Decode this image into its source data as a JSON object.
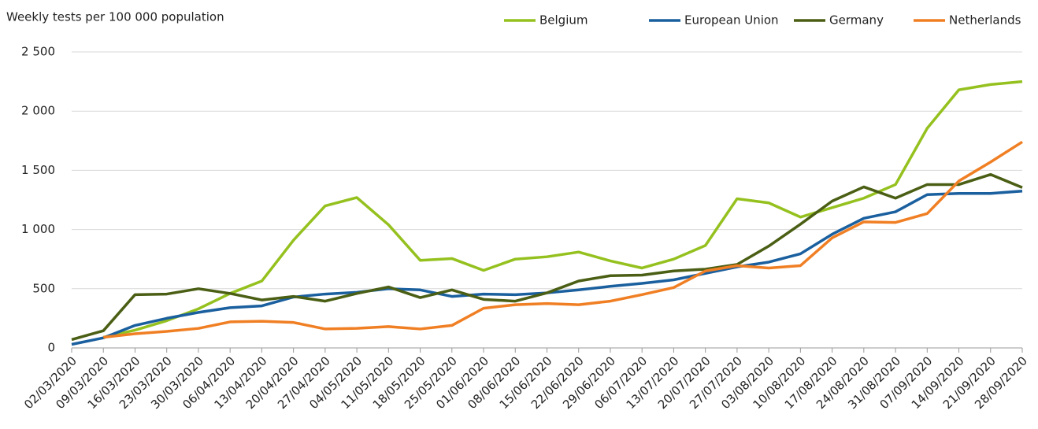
{
  "chart_data": {
    "type": "line",
    "y_axis_label": "Weekly tests per 100 000 population",
    "categories": [
      "02/03/2020",
      "09/03/2020",
      "16/03/2020",
      "23/03/2020",
      "30/03/2020",
      "06/04/2020",
      "13/04/2020",
      "20/04/2020",
      "27/04/2020",
      "04/05/2020",
      "11/05/2020",
      "18/05/2020",
      "25/05/2020",
      "01/06/2020",
      "08/06/2020",
      "15/06/2020",
      "22/06/2020",
      "29/06/2020",
      "06/07/2020",
      "13/07/2020",
      "20/07/2020",
      "27/07/2020",
      "03/08/2020",
      "10/08/2020",
      "17/08/2020",
      "24/08/2020",
      "31/08/2020",
      "07/09/2020",
      "14/09/2020",
      "21/09/2020",
      "28/09/2020"
    ],
    "series": [
      {
        "name": "Belgium",
        "color": "#95c11f",
        "values": [
          null,
          90,
          150,
          230,
          330,
          460,
          565,
          910,
          1200,
          1270,
          1040,
          740,
          755,
          655,
          750,
          770,
          810,
          735,
          675,
          750,
          865,
          1260,
          1225,
          1105,
          1185,
          1265,
          1380,
          1855,
          2180,
          2225,
          2250
        ]
      },
      {
        "name": "European Union",
        "color": "#1a5f9e",
        "values": [
          30,
          85,
          190,
          250,
          300,
          340,
          355,
          430,
          455,
          470,
          500,
          490,
          435,
          455,
          450,
          465,
          490,
          520,
          545,
          575,
          630,
          685,
          725,
          795,
          960,
          1095,
          1150,
          1295,
          1305,
          1305,
          1325
        ]
      },
      {
        "name": "Germany",
        "color": "#4a5e14",
        "values": [
          70,
          145,
          450,
          455,
          500,
          460,
          405,
          435,
          395,
          460,
          515,
          425,
          490,
          410,
          395,
          465,
          565,
          610,
          615,
          650,
          665,
          705,
          860,
          1045,
          1240,
          1360,
          1265,
          1380,
          1380,
          1465,
          1355
        ]
      },
      {
        "name": "Netherlands",
        "color": "#f07f24",
        "values": [
          null,
          90,
          120,
          140,
          165,
          220,
          225,
          215,
          160,
          165,
          180,
          160,
          190,
          335,
          365,
          375,
          365,
          395,
          450,
          510,
          650,
          695,
          675,
          695,
          930,
          1065,
          1060,
          1135,
          1410,
          1570,
          1740
        ]
      }
    ],
    "ylim": [
      0,
      2500
    ],
    "yticks": [
      0,
      500,
      {
        "value": 1000,
        "label": "1 000"
      },
      {
        "value": 1500,
        "label": "1 500"
      },
      {
        "value": 2000,
        "label": "2 000"
      },
      {
        "value": 2500,
        "label": "2 500"
      }
    ],
    "grid": true,
    "legend": "top-right"
  }
}
